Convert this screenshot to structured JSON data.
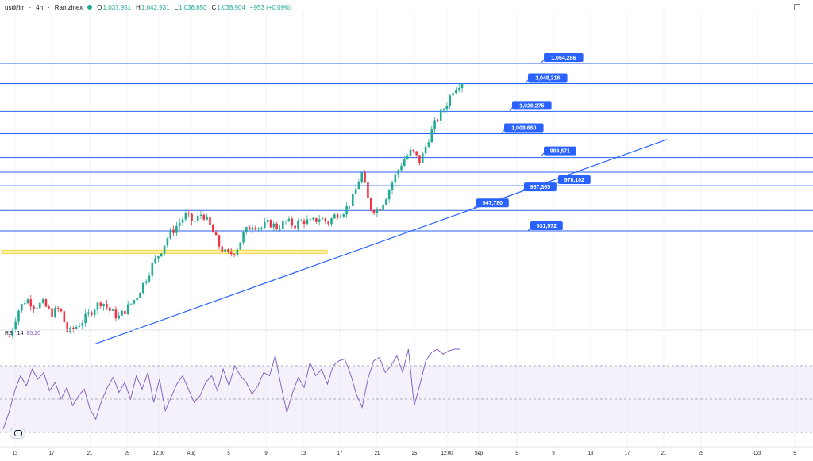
{
  "header": {
    "symbol": "usdt/irr",
    "interval": "4h",
    "exchange": "Ramzinex",
    "open_label": "O",
    "open": "1,037,951",
    "high_label": "H",
    "high": "1,042,931",
    "low_label": "L",
    "low": "1,036,850",
    "close_label": "C",
    "close": "1,038,904",
    "change": "+953 (+0.09%)"
  },
  "rsi": {
    "label": "RSI",
    "period": "14",
    "value": "80.20"
  },
  "colors": {
    "up": "#22ab94",
    "down": "#f23645",
    "line": "#2962ff",
    "rsi": "#7e57c2",
    "zone": "#f2d33b"
  },
  "chart_data": {
    "type": "candlestick",
    "x_ticks": [
      "13",
      "17",
      "21",
      "25",
      "12:00",
      "Aug",
      "5",
      "9",
      "13",
      "17",
      "21",
      "25",
      "12:00",
      "Sep",
      "5",
      "9",
      "13",
      "17",
      "21",
      "25",
      "Oct",
      "5"
    ],
    "horizontal_levels": [
      {
        "label": "1,064,286",
        "value": 1064286
      },
      {
        "label": "1,048,216",
        "value": 1048216
      },
      {
        "label": "1,026,275",
        "value": 1026275
      },
      {
        "label": "1,008,660",
        "value": 1008660
      },
      {
        "label": "989,671",
        "value": 989671
      },
      {
        "label": "978,102",
        "value": 978102
      },
      {
        "label": "967,365",
        "value": 967365
      },
      {
        "label": "947,780",
        "value": 947780
      },
      {
        "label": "931,572",
        "value": 931572
      }
    ],
    "trendline": {
      "from_value": 842000,
      "to_value": 1004000
    },
    "support_zone": {
      "value": 915000
    },
    "price_path": [
      848000,
      868000,
      878000,
      872000,
      874000,
      866000,
      870000,
      850000,
      856000,
      862000,
      870000,
      876000,
      868000,
      863000,
      870000,
      878000,
      890000,
      904000,
      915000,
      928000,
      936000,
      944000,
      938000,
      946000,
      934000,
      920000,
      912000,
      916000,
      930000,
      937000,
      934000,
      938000,
      934000,
      939000,
      936000,
      940000,
      938000,
      942000,
      938000,
      945000,
      948000,
      958000,
      978000,
      950000,
      948000,
      960000,
      975000,
      988000,
      995000,
      986000,
      1005000,
      1020000,
      1030000,
      1045000,
      1050000
    ],
    "rsi": {
      "levels": [
        70,
        50,
        30
      ],
      "values": [
        32,
        42,
        55,
        64,
        58,
        68,
        62,
        66,
        55,
        60,
        50,
        57,
        46,
        52,
        56,
        44,
        38,
        49,
        57,
        63,
        54,
        60,
        50,
        64,
        56,
        66,
        48,
        62,
        43,
        51,
        59,
        64,
        56,
        48,
        52,
        60,
        64,
        55,
        68,
        58,
        70,
        64,
        60,
        53,
        58,
        66,
        64,
        76,
        58,
        42,
        54,
        63,
        57,
        72,
        64,
        68,
        59,
        70,
        73,
        74,
        65,
        53,
        45,
        62,
        73,
        75,
        66,
        70,
        76,
        66,
        80,
        46,
        59,
        73,
        78,
        80,
        77,
        79,
        80,
        80
      ]
    }
  }
}
